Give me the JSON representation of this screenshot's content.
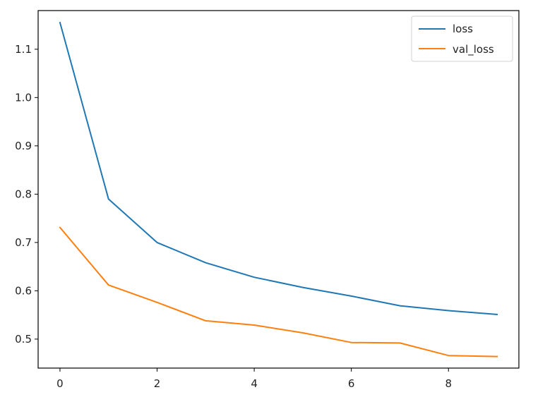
{
  "chart_data": {
    "type": "line",
    "title": "",
    "xlabel": "",
    "ylabel": "",
    "x": [
      0,
      1,
      2,
      3,
      4,
      5,
      6,
      7,
      8,
      9
    ],
    "series": [
      {
        "name": "loss",
        "color": "#1f77b4",
        "values": [
          1.155,
          0.79,
          0.7,
          0.658,
          0.628,
          0.607,
          0.589,
          0.569,
          0.559,
          0.551
        ]
      },
      {
        "name": "val_loss",
        "color": "#ff7f0e",
        "values": [
          0.731,
          0.612,
          0.576,
          0.538,
          0.529,
          0.513,
          0.493,
          0.492,
          0.466,
          0.464
        ]
      }
    ],
    "xlim": [
      -0.45,
      9.45
    ],
    "ylim": [
      0.44,
      1.18
    ],
    "xticks": [
      0,
      2,
      4,
      6,
      8
    ],
    "xtick_labels": [
      "0",
      "2",
      "4",
      "6",
      "8"
    ],
    "yticks": [
      0.5,
      0.6,
      0.7,
      0.8,
      0.9,
      1.0,
      1.1
    ],
    "ytick_labels": [
      "0.5",
      "0.6",
      "0.7",
      "0.8",
      "0.9",
      "1.0",
      "1.1"
    ],
    "grid": false,
    "legend_position": "top-right"
  }
}
